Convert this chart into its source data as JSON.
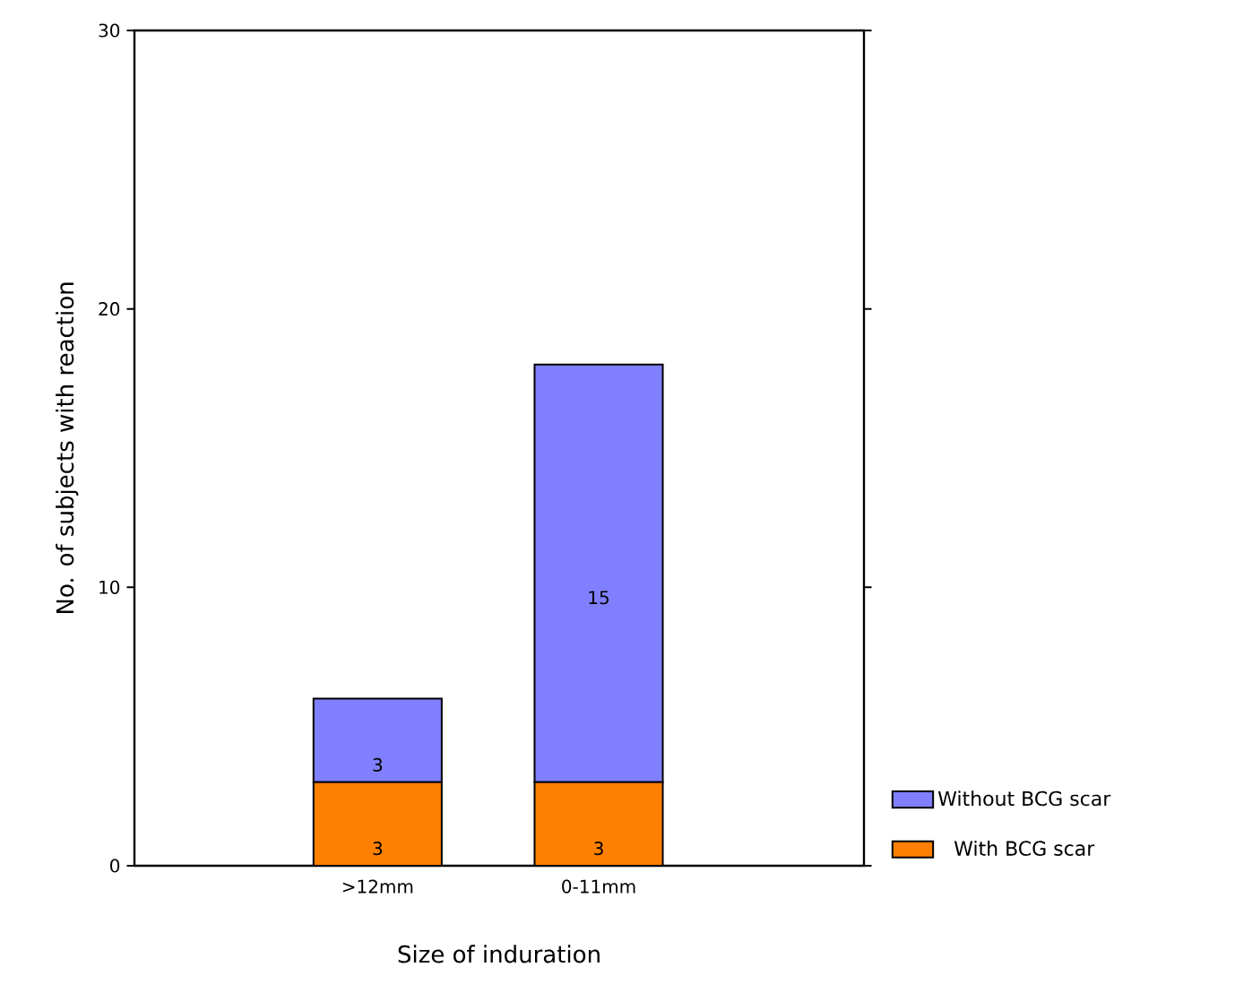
{
  "chart_data": {
    "type": "bar",
    "stacked": true,
    "xlabel": "Size of induration",
    "ylabel": "No. of subjects with reaction",
    "categories": [
      ">12mm",
      "0-11mm"
    ],
    "series": [
      {
        "name": "With BCG scar",
        "color": "#ff8000",
        "values": [
          3,
          3
        ]
      },
      {
        "name": "Without BCG scar",
        "color": "#8080ff",
        "values": [
          3,
          15
        ]
      }
    ],
    "ylim": [
      0,
      30
    ],
    "yticks": [
      0,
      10,
      20,
      30
    ],
    "data_labels": true,
    "legend": "bottom right"
  }
}
